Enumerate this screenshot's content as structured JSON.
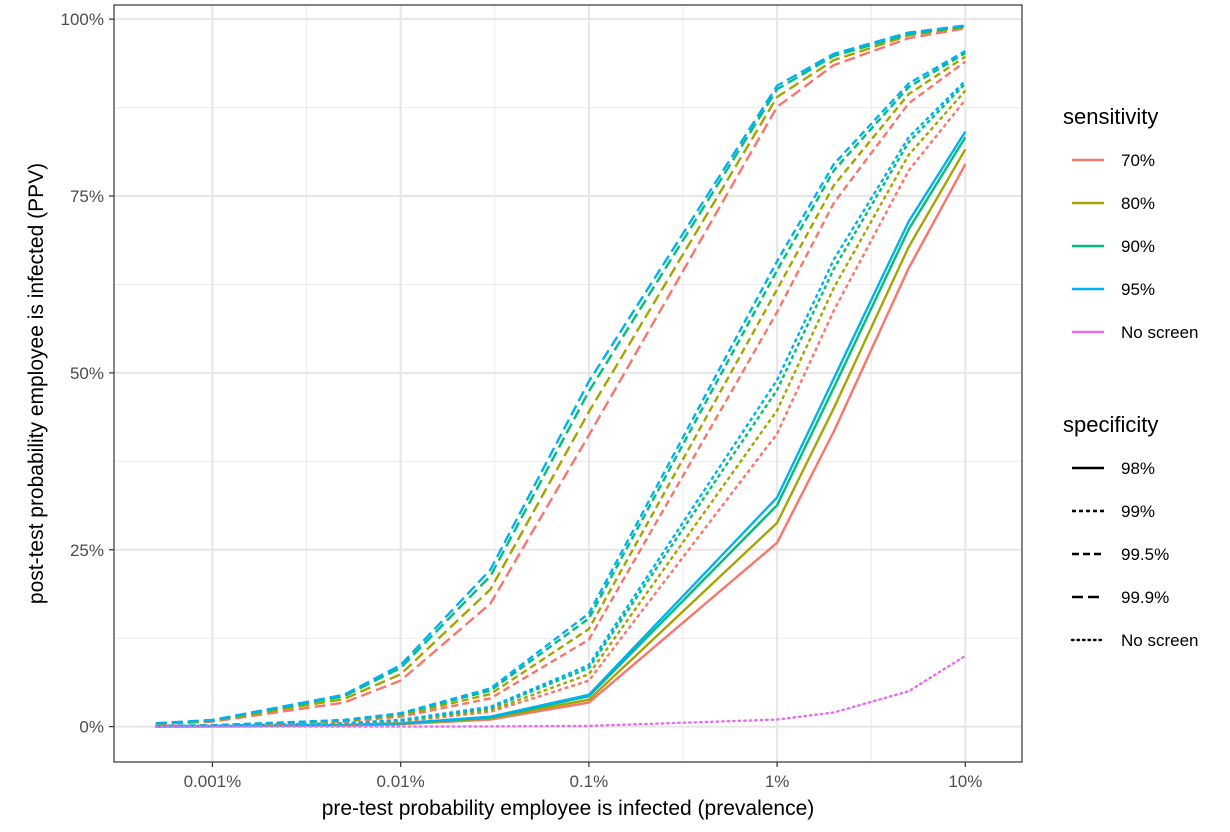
{
  "chart_data": {
    "type": "line",
    "xlabel": "pre-test probability employee is infected (prevalence)",
    "ylabel": "post-test probability employee is infected (PPV)",
    "x_scale": "log",
    "x": [
      0.0005,
      0.001,
      0.005,
      0.01,
      0.03,
      0.1,
      1,
      2,
      5,
      10
    ],
    "x_ticks": [
      {
        "value": 0.001,
        "label": "0.001%"
      },
      {
        "value": 0.01,
        "label": "0.01%"
      },
      {
        "value": 0.1,
        "label": "0.1%"
      },
      {
        "value": 1,
        "label": "1%"
      },
      {
        "value": 10,
        "label": "10%"
      }
    ],
    "xlim": [
      0.0003,
      20
    ],
    "y_ticks": [
      {
        "value": 0,
        "label": "0%"
      },
      {
        "value": 25,
        "label": "25%"
      },
      {
        "value": 50,
        "label": "50%"
      },
      {
        "value": 75,
        "label": "75%"
      },
      {
        "value": 100,
        "label": "100%"
      }
    ],
    "ylim": [
      -5,
      102
    ],
    "grid": true,
    "legend_position": "right",
    "legends": [
      {
        "title": "sensitivity",
        "items": [
          {
            "label": "70%",
            "color": "#F8766D"
          },
          {
            "label": "80%",
            "color": "#A3A500"
          },
          {
            "label": "90%",
            "color": "#00BF7D"
          },
          {
            "label": "95%",
            "color": "#00B0F6"
          },
          {
            "label": "No screen",
            "color": "#E76BF3"
          }
        ]
      },
      {
        "title": "specificity",
        "items": [
          {
            "label": "98%",
            "dash": "solid"
          },
          {
            "label": "99%",
            "dash": "dash-short"
          },
          {
            "label": "99.5%",
            "dash": "dash-medium"
          },
          {
            "label": "99.9%",
            "dash": "dash-long"
          },
          {
            "label": "No screen",
            "dash": "dotted"
          }
        ]
      }
    ],
    "series": [
      {
        "sensitivity": "70%",
        "specificity": "98%",
        "color": "#F8766D",
        "dash": "solid",
        "values": [
          0.02,
          0.03,
          0.17,
          0.35,
          1.0,
          3.4,
          26,
          41.7,
          64.8,
          79.5
        ]
      },
      {
        "sensitivity": "80%",
        "specificity": "98%",
        "color": "#A3A500",
        "dash": "solid",
        "values": [
          0.02,
          0.04,
          0.2,
          0.4,
          1.2,
          3.8,
          28.8,
          45,
          67.8,
          81.6
        ]
      },
      {
        "sensitivity": "90%",
        "specificity": "98%",
        "color": "#00BF7D",
        "dash": "solid",
        "values": [
          0.02,
          0.05,
          0.22,
          0.45,
          1.3,
          4.3,
          31.3,
          47.9,
          70.3,
          83.3
        ]
      },
      {
        "sensitivity": "95%",
        "specificity": "98%",
        "color": "#00B0F6",
        "dash": "solid",
        "values": [
          0.02,
          0.05,
          0.24,
          0.47,
          1.4,
          4.5,
          32.4,
          49.2,
          71.4,
          84.1
        ]
      },
      {
        "sensitivity": "70%",
        "specificity": "99%",
        "color": "#F8766D",
        "dash": "dash-short",
        "values": [
          0.04,
          0.07,
          0.35,
          0.7,
          2.1,
          6.5,
          41.4,
          58.8,
          78.6,
          88.6
        ]
      },
      {
        "sensitivity": "80%",
        "specificity": "99%",
        "color": "#A3A500",
        "dash": "dash-short",
        "values": [
          0.04,
          0.08,
          0.4,
          0.8,
          2.3,
          7.4,
          44.7,
          62,
          80.8,
          89.9
        ]
      },
      {
        "sensitivity": "90%",
        "specificity": "99%",
        "color": "#00BF7D",
        "dash": "dash-short",
        "values": [
          0.05,
          0.09,
          0.45,
          0.9,
          2.6,
          8.3,
          47.6,
          64.7,
          82.6,
          90.9
        ]
      },
      {
        "sensitivity": "95%",
        "specificity": "99%",
        "color": "#00B0F6",
        "dash": "dash-short",
        "values": [
          0.05,
          0.1,
          0.47,
          0.95,
          2.8,
          8.7,
          49,
          66,
          83.3,
          91.3
        ]
      },
      {
        "sensitivity": "70%",
        "specificity": "99.5%",
        "color": "#F8766D",
        "dash": "dash-medium",
        "values": [
          0.07,
          0.14,
          0.7,
          1.4,
          4.0,
          12.3,
          58.6,
          74,
          88.1,
          94.0
        ]
      },
      {
        "sensitivity": "80%",
        "specificity": "99.5%",
        "color": "#A3A500",
        "dash": "dash-medium",
        "values": [
          0.08,
          0.16,
          0.8,
          1.6,
          4.6,
          13.8,
          61.8,
          76.5,
          89.4,
          94.7
        ]
      },
      {
        "sensitivity": "90%",
        "specificity": "99.5%",
        "color": "#00BF7D",
        "dash": "dash-medium",
        "values": [
          0.09,
          0.18,
          0.9,
          1.8,
          5.1,
          15.3,
          64.5,
          78.6,
          90.4,
          95.2
        ]
      },
      {
        "sensitivity": "95%",
        "specificity": "99.5%",
        "color": "#00B0F6",
        "dash": "dash-medium",
        "values": [
          0.1,
          0.19,
          0.94,
          1.9,
          5.4,
          16,
          65.8,
          79.5,
          90.9,
          95.5
        ]
      },
      {
        "sensitivity": "70%",
        "specificity": "99.9%",
        "color": "#F8766D",
        "dash": "dash-long",
        "values": [
          0.35,
          0.7,
          3.4,
          6.5,
          17.4,
          41.2,
          87.6,
          93.5,
          97.3,
          98.7
        ]
      },
      {
        "sensitivity": "80%",
        "specificity": "99.9%",
        "color": "#A3A500",
        "dash": "dash-long",
        "values": [
          0.4,
          0.8,
          3.9,
          7.4,
          19.4,
          44.5,
          89,
          94.2,
          97.7,
          98.9
        ]
      },
      {
        "sensitivity": "90%",
        "specificity": "99.9%",
        "color": "#00BF7D",
        "dash": "dash-long",
        "values": [
          0.45,
          0.9,
          4.3,
          8.3,
          21.3,
          47.4,
          90.1,
          94.8,
          97.9,
          99.0
        ]
      },
      {
        "sensitivity": "95%",
        "specificity": "99.9%",
        "color": "#00B0F6",
        "dash": "dash-long",
        "values": [
          0.47,
          0.94,
          4.5,
          8.7,
          22.2,
          48.8,
          90.6,
          95.1,
          98.1,
          99.1
        ]
      },
      {
        "sensitivity": "No screen",
        "specificity": "No screen",
        "color": "#E76BF3",
        "dash": "dotted",
        "values": [
          0.0005,
          0.001,
          0.005,
          0.01,
          0.03,
          0.1,
          1,
          2,
          5,
          10
        ]
      }
    ]
  }
}
